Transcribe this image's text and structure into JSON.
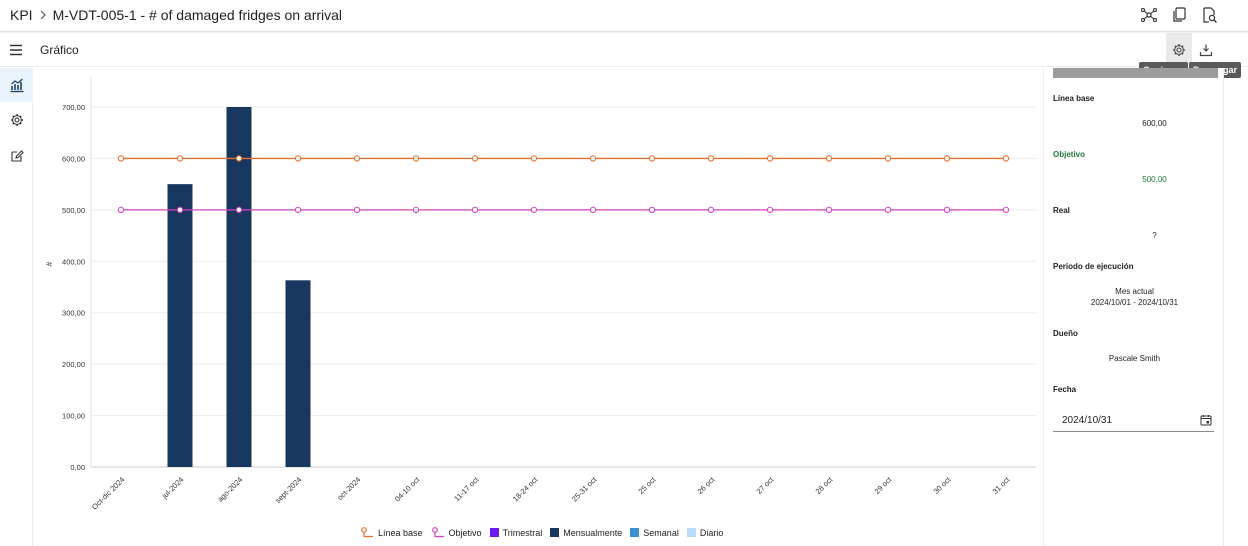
{
  "header": {
    "root": "KPI",
    "title": "M-VDT-005-1 - # of damaged fridges on arrival"
  },
  "subheader": {
    "title": "Gráfico",
    "options_tooltip": "Opciones",
    "download_tooltip": "Descargar"
  },
  "panel": {
    "baseline_label": "Línea base",
    "baseline_value": "600,00",
    "target_label": "Objetivo",
    "target_value": "500,00",
    "actual_label": "Real",
    "actual_value": "?",
    "period_label": "Periodo de ejecución",
    "period_name": "Mes actual",
    "period_range": "2024/10/01 - 2024/10/31",
    "owner_label": "Dueño",
    "owner_value": "Pascale Smith",
    "date_label": "Fecha",
    "date_value": "2024/10/31"
  },
  "colors": {
    "baseline": "#e8702a",
    "target": "#d63fc4",
    "quarterly": "#6a1bf0",
    "monthly": "#17375e",
    "weekly": "#3c8fd0",
    "daily": "#b8dcf7",
    "accent_green": "#1b7a35"
  },
  "chart_data": {
    "type": "bar",
    "ylabel": "#",
    "ylim": [
      0,
      700
    ],
    "yticks": [
      "0,00",
      "100,00",
      "200,00",
      "300,00",
      "400,00",
      "500,00",
      "600,00",
      "700,00"
    ],
    "categories": [
      "Oct-dic 2024",
      "jul-2024",
      "ago-2024",
      "sept-2024",
      "oct-2024",
      "04-10 oct",
      "11-17 oct",
      "18-24 oct",
      "25-31 oct",
      "25 oct",
      "26 oct",
      "27 oct",
      "28 oct",
      "29 oct",
      "30 oct",
      "31 oct"
    ],
    "series": [
      {
        "name": "Línea base",
        "kind": "line",
        "values": [
          600,
          600,
          600,
          600,
          600,
          600,
          600,
          600,
          600,
          600,
          600,
          600,
          600,
          600,
          600,
          600
        ]
      },
      {
        "name": "Objetivo",
        "kind": "line",
        "values": [
          500,
          500,
          500,
          500,
          500,
          500,
          500,
          500,
          500,
          500,
          500,
          500,
          500,
          500,
          500,
          500
        ]
      },
      {
        "name": "Trimestral",
        "kind": "bar",
        "values": [
          null,
          null,
          null,
          null,
          null,
          null,
          null,
          null,
          null,
          null,
          null,
          null,
          null,
          null,
          null,
          null
        ]
      },
      {
        "name": "Mensualmente",
        "kind": "bar",
        "values": [
          null,
          550,
          700,
          363,
          null,
          null,
          null,
          null,
          null,
          null,
          null,
          null,
          null,
          null,
          null,
          null
        ]
      },
      {
        "name": "Semanal",
        "kind": "bar",
        "values": [
          null,
          null,
          null,
          null,
          null,
          null,
          null,
          null,
          null,
          null,
          null,
          null,
          null,
          null,
          null,
          null
        ]
      },
      {
        "name": "Diario",
        "kind": "bar",
        "values": [
          null,
          null,
          null,
          null,
          null,
          null,
          null,
          null,
          null,
          null,
          null,
          null,
          null,
          null,
          null,
          null
        ]
      }
    ],
    "grid": true,
    "legend_position": "bottom"
  }
}
